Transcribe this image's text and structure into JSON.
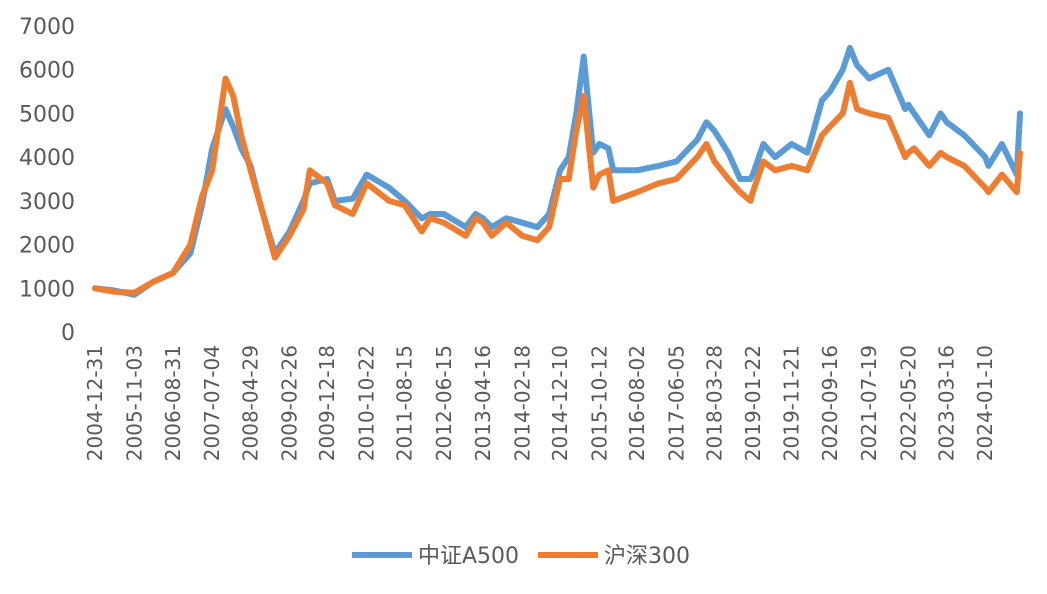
{
  "chart_data": {
    "type": "line",
    "title": "",
    "xlabel": "",
    "ylabel": "",
    "ylim": [
      0,
      7000
    ],
    "yticks": [
      0,
      1000,
      2000,
      3000,
      4000,
      5000,
      6000,
      7000
    ],
    "grid": false,
    "legend_position": "bottom",
    "xtick_labels": [
      "2004-12-31",
      "2005-11-03",
      "2006-08-31",
      "2007-07-04",
      "2008-04-29",
      "2009-02-26",
      "2009-12-18",
      "2010-10-22",
      "2011-08-15",
      "2012-06-15",
      "2013-04-16",
      "2014-02-18",
      "2014-12-10",
      "2015-10-12",
      "2016-08-02",
      "2017-06-05",
      "2018-03-28",
      "2019-01-22",
      "2019-11-21",
      "2020-09-16",
      "2021-07-19",
      "2022-05-20",
      "2023-03-16",
      "2024-01-10"
    ],
    "x": [
      "2004-12-31",
      "2005-06-01",
      "2005-11-03",
      "2006-04-01",
      "2006-08-31",
      "2007-01-15",
      "2007-04-15",
      "2007-07-04",
      "2007-10-16",
      "2007-12-15",
      "2008-02-15",
      "2008-04-29",
      "2008-07-15",
      "2008-11-04",
      "2009-02-26",
      "2009-06-15",
      "2009-08-04",
      "2009-12-18",
      "2010-02-15",
      "2010-07-05",
      "2010-10-22",
      "2011-04-15",
      "2011-08-15",
      "2011-12-25",
      "2012-03-01",
      "2012-06-15",
      "2012-12-03",
      "2013-02-18",
      "2013-04-16",
      "2013-06-25",
      "2013-10-15",
      "2014-02-18",
      "2014-06-15",
      "2014-09-15",
      "2014-12-10",
      "2015-02-15",
      "2015-04-15",
      "2015-06-12",
      "2015-08-25",
      "2015-10-12",
      "2015-12-22",
      "2016-01-28",
      "2016-08-02",
      "2017-01-15",
      "2017-06-05",
      "2017-11-15",
      "2018-01-25",
      "2018-03-28",
      "2018-07-15",
      "2018-10-15",
      "2019-01-03",
      "2019-01-22",
      "2019-04-15",
      "2019-07-15",
      "2019-11-21",
      "2020-03-23",
      "2020-07-15",
      "2020-09-16",
      "2020-12-25",
      "2021-02-18",
      "2021-04-15",
      "2021-07-19",
      "2021-12-15",
      "2022-04-26",
      "2022-05-20",
      "2022-07-04",
      "2022-10-31",
      "2023-01-27",
      "2023-03-16",
      "2023-07-31",
      "2024-01-10",
      "2024-02-05",
      "2024-05-20",
      "2024-09-13",
      "2024-10-08"
    ],
    "series": [
      {
        "name": "中证A500",
        "color": "#5B9BD5",
        "values": [
          1000,
          950,
          850,
          1150,
          1350,
          1800,
          2900,
          4200,
          5100,
          4700,
          4200,
          3800,
          2900,
          1800,
          2300,
          3000,
          3400,
          3500,
          3000,
          3050,
          3600,
          3300,
          3000,
          2600,
          2700,
          2700,
          2400,
          2700,
          2600,
          2400,
          2600,
          2500,
          2400,
          2700,
          3700,
          4000,
          5000,
          6300,
          4100,
          4300,
          4200,
          3700,
          3700,
          3800,
          3900,
          4400,
          4800,
          4600,
          4100,
          3500,
          3500,
          3600,
          4300,
          4000,
          4300,
          4100,
          5300,
          5500,
          6000,
          6500,
          6100,
          5800,
          6000,
          5100,
          5200,
          5000,
          4500,
          5000,
          4800,
          4500,
          4000,
          3800,
          4300,
          3600,
          5000
        ]
      },
      {
        "name": "沪深300",
        "color": "#ED7D31",
        "values": [
          1000,
          920,
          900,
          1150,
          1350,
          2000,
          3100,
          3700,
          5800,
          5400,
          4500,
          3700,
          2900,
          1700,
          2200,
          2800,
          3700,
          3400,
          2900,
          2700,
          3400,
          3000,
          2900,
          2300,
          2600,
          2500,
          2200,
          2600,
          2500,
          2200,
          2500,
          2200,
          2100,
          2400,
          3500,
          3500,
          4600,
          5400,
          3300,
          3600,
          3700,
          3000,
          3200,
          3400,
          3500,
          4000,
          4300,
          3900,
          3500,
          3200,
          3000,
          3200,
          3900,
          3700,
          3800,
          3700,
          4500,
          4700,
          5000,
          5700,
          5100,
          5000,
          4900,
          4000,
          4100,
          4200,
          3800,
          4100,
          4000,
          3800,
          3300,
          3200,
          3600,
          3200,
          4100
        ]
      }
    ]
  }
}
